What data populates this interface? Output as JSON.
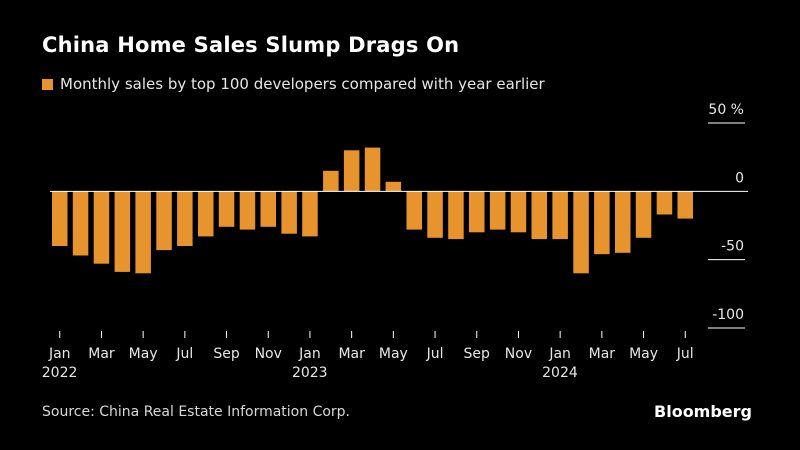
{
  "title": "China Home Sales Slump Drags On",
  "legend_label": "Monthly sales by top 100 developers compared with year earlier",
  "source": "Source: China Real Estate Information Corp.",
  "brand": "Bloomberg",
  "colors": {
    "bar": "#e8942e",
    "background": "#000000",
    "text": "#ffffff",
    "axis": "#ffffff"
  },
  "chart_data": {
    "type": "bar",
    "title": "China Home Sales Slump Drags On",
    "ylabel": "Monthly sales by top 100 developers compared with year earlier",
    "xlabel": "",
    "ylim": [
      -100,
      50
    ],
    "y_ticks": [
      {
        "value": 50,
        "label": "50 %"
      },
      {
        "value": 0,
        "label": "0"
      },
      {
        "value": -50,
        "label": "-50"
      },
      {
        "value": -100,
        "label": "-100"
      }
    ],
    "categories": [
      "2022-01",
      "2022-02",
      "2022-03",
      "2022-04",
      "2022-05",
      "2022-06",
      "2022-07",
      "2022-08",
      "2022-09",
      "2022-10",
      "2022-11",
      "2022-12",
      "2023-01",
      "2023-02",
      "2023-03",
      "2023-04",
      "2023-05",
      "2023-06",
      "2023-07",
      "2023-08",
      "2023-09",
      "2023-10",
      "2023-11",
      "2023-12",
      "2024-01",
      "2024-02",
      "2024-03",
      "2024-04",
      "2024-05",
      "2024-06",
      "2024-07"
    ],
    "values": [
      -40,
      -47,
      -53,
      -59,
      -60,
      -43,
      -40,
      -33,
      -26,
      -28,
      -26,
      -31,
      -33,
      15,
      30,
      32,
      7,
      -28,
      -34,
      -35,
      -30,
      -28,
      -30,
      -35,
      -35,
      -60,
      -46,
      -45,
      -34,
      -17,
      -20
    ],
    "x_tick_labels": [
      {
        "index": 0,
        "label": "Jan",
        "year": "2022"
      },
      {
        "index": 2,
        "label": "Mar",
        "year": ""
      },
      {
        "index": 4,
        "label": "May",
        "year": ""
      },
      {
        "index": 6,
        "label": "Jul",
        "year": ""
      },
      {
        "index": 8,
        "label": "Sep",
        "year": ""
      },
      {
        "index": 10,
        "label": "Nov",
        "year": ""
      },
      {
        "index": 12,
        "label": "Jan",
        "year": "2023"
      },
      {
        "index": 14,
        "label": "Mar",
        "year": ""
      },
      {
        "index": 16,
        "label": "May",
        "year": ""
      },
      {
        "index": 18,
        "label": "Jul",
        "year": ""
      },
      {
        "index": 20,
        "label": "Sep",
        "year": ""
      },
      {
        "index": 22,
        "label": "Nov",
        "year": ""
      },
      {
        "index": 24,
        "label": "Jan",
        "year": "2024"
      },
      {
        "index": 26,
        "label": "Mar",
        "year": ""
      },
      {
        "index": 28,
        "label": "May",
        "year": ""
      },
      {
        "index": 30,
        "label": "Jul",
        "year": ""
      }
    ]
  }
}
